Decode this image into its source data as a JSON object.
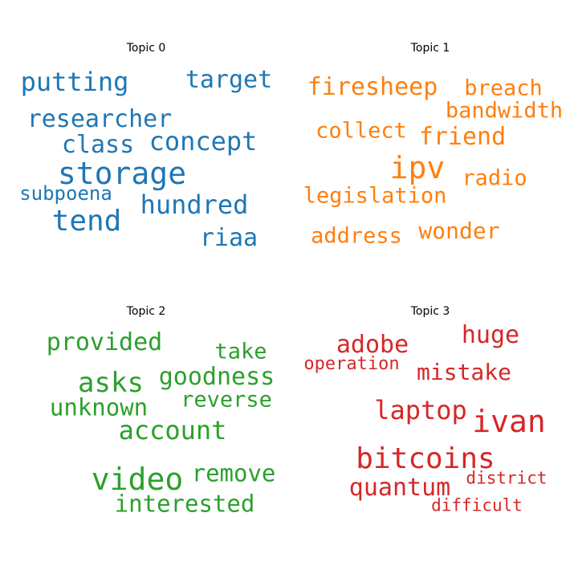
{
  "chart_data": [
    {
      "type": "wordcloud",
      "title": "Topic 0",
      "color": "#1f77b4",
      "words": [
        "storage",
        "tend",
        "concept",
        "hundred",
        "putting",
        "target",
        "researcher",
        "class",
        "riaa",
        "subpoena"
      ],
      "weights": [
        1.0,
        0.95,
        0.85,
        0.85,
        0.82,
        0.8,
        0.8,
        0.78,
        0.75,
        0.62
      ]
    },
    {
      "type": "wordcloud",
      "title": "Topic 1",
      "color": "#ff7f0e",
      "words": [
        "ipv",
        "firesheep",
        "friend",
        "wonder",
        "legislation",
        "breach",
        "bandwidth",
        "radio",
        "collect",
        "address"
      ],
      "weights": [
        1.0,
        0.8,
        0.78,
        0.72,
        0.7,
        0.7,
        0.7,
        0.68,
        0.68,
        0.68
      ]
    },
    {
      "type": "wordcloud",
      "title": "Topic 2",
      "color": "#2ca02c",
      "words": [
        "video",
        "asks",
        "account",
        "goodness",
        "provided",
        "unknown",
        "interested",
        "take",
        "reverse",
        "remove"
      ],
      "weights": [
        1.0,
        0.9,
        0.85,
        0.8,
        0.8,
        0.8,
        0.78,
        0.75,
        0.72,
        0.72
      ]
    },
    {
      "type": "wordcloud",
      "title": "Topic 3",
      "color": "#d62728",
      "words": [
        "ivan",
        "bitcoins",
        "laptop",
        "quantum",
        "huge",
        "adobe",
        "mistake",
        "operation",
        "district",
        "difficult"
      ],
      "weights": [
        1.0,
        0.92,
        0.85,
        0.8,
        0.75,
        0.75,
        0.72,
        0.6,
        0.58,
        0.55
      ]
    }
  ]
}
